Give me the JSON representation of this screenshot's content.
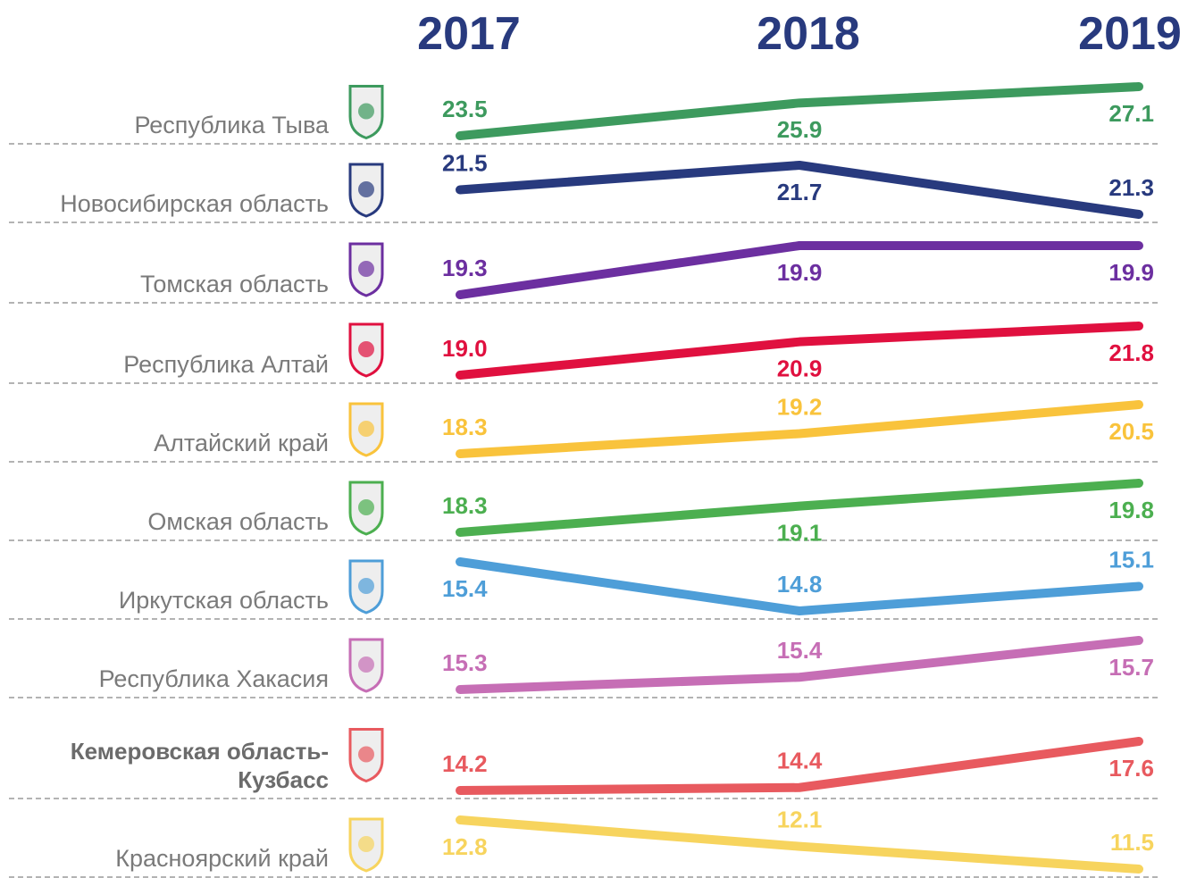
{
  "chart_data": {
    "type": "line",
    "categories": [
      "2017",
      "2018",
      "2019"
    ],
    "highlight": "Кемеровская область-Кузбасс",
    "series": [
      {
        "name": "Республика Тыва",
        "color": "#3d9a5e",
        "values": [
          23.5,
          25.9,
          27.1
        ],
        "value_labels": [
          "23.5",
          "25.9",
          "27.1"
        ]
      },
      {
        "name": "Новосибирская область",
        "color": "#283a7e",
        "values": [
          21.5,
          21.7,
          21.3
        ],
        "value_labels": [
          "21.5",
          "21.7",
          "21.3"
        ]
      },
      {
        "name": "Томская область",
        "color": "#6c2fa0",
        "values": [
          19.3,
          19.9,
          19.9
        ],
        "value_labels": [
          "19.3",
          "19.9",
          "19.9"
        ]
      },
      {
        "name": "Республика Алтай",
        "color": "#e0103f",
        "values": [
          19.0,
          20.9,
          21.8
        ],
        "value_labels": [
          "19.0",
          "20.9",
          "21.8"
        ]
      },
      {
        "name": "Алтайский край",
        "color": "#f9c33c",
        "values": [
          18.3,
          19.2,
          20.5
        ],
        "value_labels": [
          "18.3",
          "19.2",
          "20.5"
        ]
      },
      {
        "name": "Омская область",
        "color": "#4caf50",
        "values": [
          18.3,
          19.1,
          19.8
        ],
        "value_labels": [
          "18.3",
          "19.1",
          "19.8"
        ]
      },
      {
        "name": "Иркутская область",
        "color": "#4e9ed8",
        "values": [
          15.4,
          14.8,
          15.1
        ],
        "value_labels": [
          "15.4",
          "14.8",
          "15.1"
        ]
      },
      {
        "name": "Республика Хакасия",
        "color": "#c66eb5",
        "values": [
          15.3,
          15.4,
          15.7
        ],
        "value_labels": [
          "15.3",
          "15.4",
          "15.7"
        ]
      },
      {
        "name": "Кемеровская область-Кузбасс",
        "color": "#e85a5f",
        "values": [
          14.2,
          14.4,
          17.6
        ],
        "value_labels": [
          "14.2",
          "14.4",
          "17.6"
        ]
      },
      {
        "name": "Красноярский край",
        "color": "#f7d45e",
        "values": [
          12.8,
          12.1,
          11.5
        ],
        "value_labels": [
          "12.8",
          "12.1",
          "11.5"
        ]
      }
    ]
  }
}
